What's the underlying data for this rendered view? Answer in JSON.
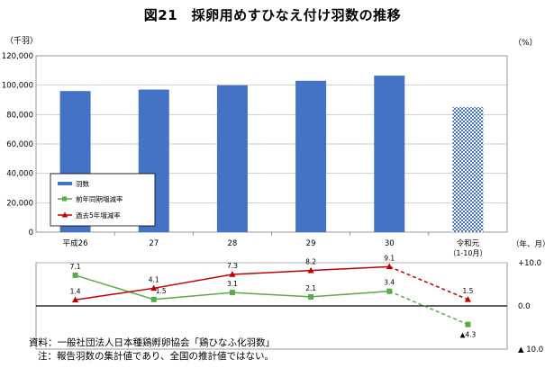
{
  "chart_data": {
    "type": "bar+line",
    "title": "図21　採卵用めすひなえ付け羽数の推移",
    "left_unit": "（千羽）",
    "right_unit": "（%）",
    "x_axis_unit": "（年、月）",
    "categories": [
      "平成26",
      "27",
      "28",
      "29",
      "30",
      "令和元"
    ],
    "category_sublabels": [
      "",
      "",
      "",
      "",
      "",
      "（1-10月）"
    ],
    "bar_series": {
      "name": "羽数",
      "color": "#4472c4",
      "values": [
        96000,
        97000,
        100000,
        103000,
        106500,
        85000
      ],
      "last_bar_hatched": true
    },
    "bar_axis": {
      "ylim": [
        0,
        120000
      ],
      "ticks": [
        0,
        20000,
        40000,
        60000,
        80000,
        100000,
        120000
      ],
      "tick_labels": [
        "0",
        "20,000",
        "40,000",
        "60,000",
        "80,000",
        "100,000",
        "120,000"
      ]
    },
    "line_series": [
      {
        "name": "前年同期増減率",
        "color": "#5aaa46",
        "marker": "square",
        "values": [
          7.1,
          1.5,
          3.1,
          2.1,
          3.4,
          -4.3
        ],
        "labels": [
          "7.1",
          "1.5",
          "3.1",
          "2.1",
          "3.4",
          "▲4.3"
        ],
        "last_segment_dashed": true
      },
      {
        "name": "過去5年増減率",
        "color": "#c00000",
        "marker": "triangle",
        "values": [
          1.4,
          4.1,
          7.3,
          8.2,
          9.1,
          1.5
        ],
        "labels": [
          "1.4",
          "4.1",
          "7.3",
          "8.2",
          "9.1",
          "1.5"
        ],
        "last_segment_dashed": true
      }
    ],
    "line_axis": {
      "ylim": [
        -10,
        10
      ],
      "tick_labels": [
        "+10.0",
        "0.0",
        "▲ 10.0"
      ]
    },
    "grid": true,
    "legend_placement": "bottom-left of bar panel"
  },
  "notes": {
    "source": "資料：一般社団法人日本種鶏孵卵協会「鶏ひなふ化羽数」",
    "note": "注：報告羽数の集計値であり、全国の推計値ではない。"
  }
}
